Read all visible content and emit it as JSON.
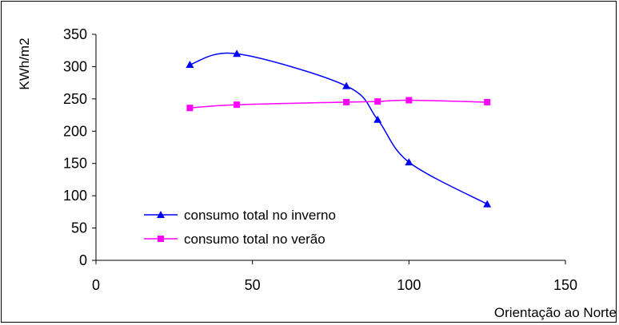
{
  "chart_data": {
    "type": "line",
    "title": "",
    "xlabel": "Orientação ao Norte",
    "ylabel": "KWh/m2",
    "xlim": [
      0,
      150
    ],
    "ylim": [
      0,
      350
    ],
    "xticks": [
      0,
      50,
      100,
      150
    ],
    "yticks": [
      0,
      50,
      100,
      150,
      200,
      250,
      300,
      350
    ],
    "grid": false,
    "legend_position": "bottom-left",
    "series": [
      {
        "name": "consumo total no inverno",
        "color": "#0000ff",
        "marker": "triangle",
        "x": [
          30,
          45,
          80,
          90,
          100,
          125
        ],
        "y": [
          303,
          320,
          270,
          218,
          152,
          87
        ]
      },
      {
        "name": "consumo total no verão",
        "color": "#ff00ff",
        "marker": "square",
        "x": [
          30,
          45,
          80,
          90,
          100,
          125
        ],
        "y": [
          236,
          241,
          245,
          246,
          248,
          245
        ]
      }
    ]
  }
}
